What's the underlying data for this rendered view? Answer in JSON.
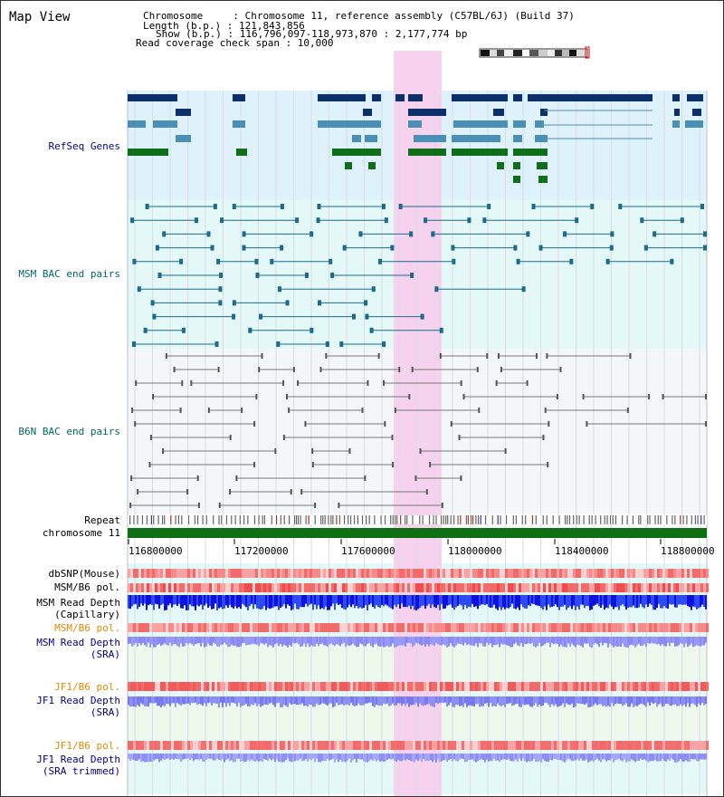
{
  "view": {
    "title": "Map View"
  },
  "info": {
    "chromosome": "Chromosome     : Chromosome 11, reference assembly (C57BL/6J) (Build 37)",
    "length": "Length (b.p.) : 121,843,856",
    "show": "Show (b.p.) : 116,796,097-118,973,870 : 2,177,774 bp",
    "coverage": "Read coverage check span : 10,000"
  },
  "tracks": {
    "refseq": "RefSeq Genes",
    "msm_bac": "MSM BAC end pairs",
    "b6n_bac": "B6N BAC end pairs",
    "repeat": "Repeat",
    "chromosome": "chromosome 11",
    "dbsnp": "dbSNP(Mouse)",
    "msm_b6_pol": "MSM/B6 pol.",
    "msm_depth_cap": "MSM Read Depth\n(Capillary)",
    "msm_b6_pol2": "MSM/B6 pol.",
    "msm_depth_sra": "MSM Read Depth\n(SRA)",
    "jf1_b6_pol": "JF1/B6 pol.",
    "jf1_depth_sra": "JF1 Read Depth\n(SRA)",
    "jf1_b6_pol2": "JF1/B6 pol.",
    "jf1_depth_trim": "JF1 Read Depth\n(SRA trimmed)"
  },
  "axis": {
    "ticks": [
      "116800000",
      "117200000",
      "117600000",
      "118000000",
      "118400000",
      "118800000"
    ]
  },
  "colors": {
    "refseq_bg": "#dff1fb",
    "msm_bg": "#e4f8f8",
    "b6n_bg": "#f4f7fa",
    "highlight": "#f7d2ee",
    "navy": "#0d2f6a",
    "teal": "#4a8fb5",
    "green": "#0f6e1a",
    "chrom": "#0e6e12",
    "label_navy": "#00008b",
    "label_teal": "#006666",
    "label_orange": "#e08a00"
  }
}
